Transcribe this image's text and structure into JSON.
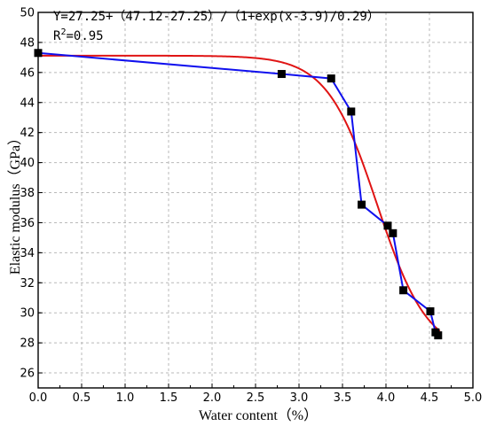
{
  "chart_data": {
    "type": "scatter",
    "xlabel": "Water content（%）",
    "ylabel": "Elastic modulus（GPa）",
    "xlim": [
      0.0,
      5.0
    ],
    "ylim": [
      25,
      50
    ],
    "x_ticks": [
      "0.0",
      "0.5",
      "1.0",
      "1.5",
      "2.0",
      "2.5",
      "3.0",
      "3.5",
      "4.0",
      "4.5",
      "5.0"
    ],
    "y_ticks": [
      "26",
      "28",
      "30",
      "32",
      "34",
      "36",
      "38",
      "40",
      "42",
      "44",
      "46",
      "48",
      "50"
    ],
    "grid": true,
    "annotations": {
      "equation": "Y=27.25+（47.12-27.25）/（1+exp(x-3.9)/0.29）",
      "r2_prefix": "R",
      "r2_sup": "2",
      "r2_value": "=0.95"
    },
    "colors": {
      "data_line": "#1010ee",
      "fit_line": "#e01414",
      "markers": "#000000"
    },
    "series": [
      {
        "marker": "square",
        "x": [
          0.0,
          2.8,
          3.37,
          3.6,
          3.72,
          4.02,
          4.08,
          4.2,
          4.51,
          4.57,
          4.6
        ],
        "y": [
          47.3,
          45.9,
          45.6,
          43.4,
          37.2,
          35.8,
          35.3,
          31.5,
          30.1,
          28.7,
          28.5
        ]
      }
    ],
    "fit": {
      "model": "boltzmann",
      "A1": 47.12,
      "A2": 27.25,
      "x0": 3.9,
      "dx": 0.29,
      "x_start": 0.0,
      "x_end": 4.62
    }
  }
}
